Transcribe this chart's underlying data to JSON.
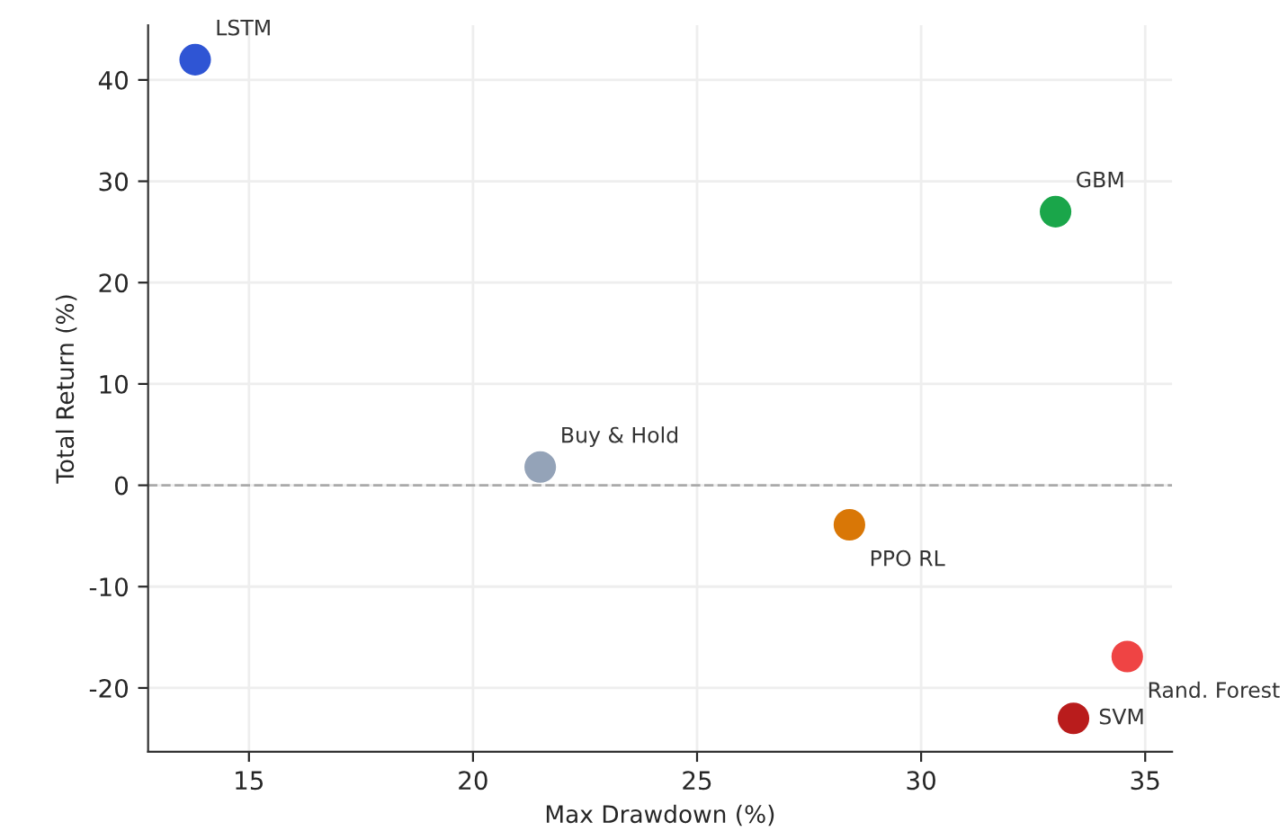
{
  "chart_data": {
    "type": "scatter",
    "xlabel": "Max Drawdown (%)",
    "ylabel": "Total Return (%)",
    "xlim": [
      12.75,
      35.6
    ],
    "ylim": [
      -26.3,
      45.4
    ],
    "xticks": [
      15,
      20,
      25,
      30,
      35
    ],
    "yticks": [
      -20,
      -10,
      0,
      10,
      20,
      30,
      40
    ],
    "grid": true,
    "marker": "circle",
    "ref_lines": [
      {
        "axis": "y",
        "value": 0,
        "color": "#aaaaaa",
        "line_style": "dashed"
      }
    ],
    "series": [
      {
        "name": "LSTM",
        "color": "#2f55d4",
        "x": [
          13.8
        ],
        "values": [
          42
        ]
      },
      {
        "name": "GBM",
        "color": "#1aa64a",
        "x": [
          33.0
        ],
        "values": [
          27
        ]
      },
      {
        "name": "Buy & Hold",
        "color": "#94a3b8",
        "x": [
          21.5
        ],
        "values": [
          1.8
        ]
      },
      {
        "name": "PPO RL",
        "color": "#d97706",
        "x": [
          28.4
        ],
        "values": [
          -3.9
        ]
      },
      {
        "name": "Rand. Forest",
        "color": "#ef4444",
        "x": [
          34.6
        ],
        "values": [
          -16.9
        ]
      },
      {
        "name": "SVM",
        "color": "#b91c1c",
        "x": [
          33.4
        ],
        "values": [
          -23
        ]
      }
    ]
  }
}
